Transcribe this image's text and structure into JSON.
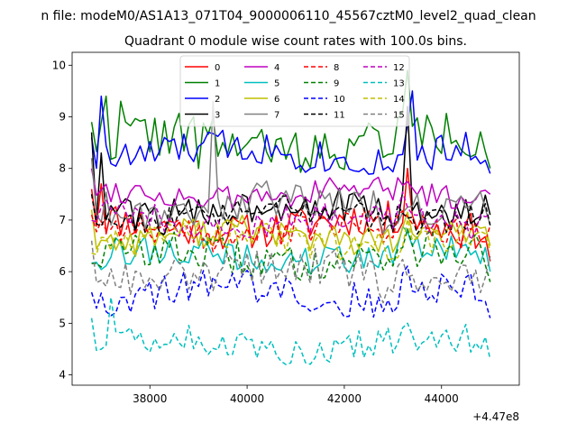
{
  "chart_data": {
    "type": "line",
    "suptitle": "n file: modeM0/AS1A13_071T04_9000006110_45567cztM0_level2_quad_clean",
    "title": "Quadrant 0 module wise count rates with 100.0s bins.",
    "xlabel": "",
    "ylabel": "",
    "x_offset_label": "+4.47e8",
    "xlim": [
      36400,
      45600
    ],
    "ylim": [
      3.8,
      10.25
    ],
    "x_ticks": [
      38000,
      40000,
      42000,
      44000
    ],
    "x_tick_labels": [
      "38000",
      "40000",
      "42000",
      "44000"
    ],
    "y_ticks": [
      4,
      5,
      6,
      7,
      8,
      9,
      10
    ],
    "y_tick_labels": [
      "4",
      "5",
      "6",
      "7",
      "8",
      "9",
      "10"
    ],
    "grid": false,
    "legend_position": "top-center",
    "x_range": [
      36800,
      45000
    ],
    "x_step": 100,
    "series": [
      {
        "name": "0",
        "color": "#ff0000",
        "style": "solid",
        "mean": 6.9,
        "amplitude": 0.35,
        "anchors": [
          [
            36800,
            7.6
          ],
          [
            37000,
            7.7
          ],
          [
            43300,
            8.0
          ],
          [
            45000,
            6.2
          ]
        ],
        "seed": 11
      },
      {
        "name": "1",
        "color": "#008000",
        "style": "solid",
        "mean": 8.5,
        "amplitude": 0.45,
        "anchors": [
          [
            36800,
            8.9
          ],
          [
            37100,
            9.4
          ],
          [
            37400,
            9.3
          ],
          [
            39000,
            8.0
          ],
          [
            41500,
            8.2
          ],
          [
            43300,
            9.9
          ],
          [
            45000,
            8.0
          ]
        ],
        "seed": 22
      },
      {
        "name": "2",
        "color": "#0000ff",
        "style": "solid",
        "mean": 8.3,
        "amplitude": 0.35,
        "anchors": [
          [
            36800,
            8.6
          ],
          [
            37000,
            9.4
          ],
          [
            43400,
            9.5
          ],
          [
            44500,
            8.7
          ],
          [
            45000,
            7.9
          ]
        ],
        "seed": 33
      },
      {
        "name": "3",
        "color": "#000000",
        "style": "solid",
        "mean": 7.2,
        "amplitude": 0.35,
        "anchors": [
          [
            36800,
            8.7
          ],
          [
            37000,
            8.3
          ],
          [
            37400,
            7.3
          ],
          [
            43300,
            9.2
          ],
          [
            45000,
            7.1
          ]
        ],
        "seed": 44
      },
      {
        "name": "4",
        "color": "#bf00bf",
        "style": "solid",
        "mean": 7.5,
        "amplitude": 0.25,
        "anchors": [
          [
            36800,
            8.0
          ],
          [
            45000,
            7.5
          ]
        ],
        "seed": 55
      },
      {
        "name": "5",
        "color": "#00bfbf",
        "style": "solid",
        "mean": 6.3,
        "amplitude": 0.3,
        "anchors": [
          [
            45000,
            6.0
          ]
        ],
        "seed": 66
      },
      {
        "name": "6",
        "color": "#bfbf00",
        "style": "solid",
        "mean": 6.7,
        "amplitude": 0.3,
        "anchors": [
          [
            36800,
            7.2
          ],
          [
            45000,
            6.5
          ]
        ],
        "seed": 77
      },
      {
        "name": "7",
        "color": "#808080",
        "style": "solid",
        "mean": 7.3,
        "amplitude": 0.35,
        "anchors": [
          [
            36800,
            8.2
          ],
          [
            39300,
            9.3
          ],
          [
            45000,
            6.9
          ]
        ],
        "seed": 88
      },
      {
        "name": "8",
        "color": "#ff0000",
        "style": "dashed",
        "mean": 6.8,
        "amplitude": 0.3,
        "anchors": [
          [
            36800,
            7.1
          ],
          [
            45000,
            6.9
          ]
        ],
        "seed": 99
      },
      {
        "name": "9",
        "color": "#008000",
        "style": "dashed",
        "mean": 6.3,
        "amplitude": 0.35,
        "anchors": [
          [
            45000,
            5.8
          ]
        ],
        "seed": 110
      },
      {
        "name": "10",
        "color": "#0000ff",
        "style": "dashed",
        "mean": 5.6,
        "amplitude": 0.35,
        "anchors": [
          [
            36800,
            5.6
          ],
          [
            45000,
            5.1
          ]
        ],
        "seed": 121
      },
      {
        "name": "11",
        "color": "#000000",
        "style": "dashed",
        "mean": 7.1,
        "amplitude": 0.3,
        "anchors": [
          [
            36800,
            7.5
          ],
          [
            45000,
            6.9
          ]
        ],
        "seed": 132
      },
      {
        "name": "12",
        "color": "#bf00bf",
        "style": "dashed",
        "mean": 7.0,
        "amplitude": 0.3,
        "anchors": [
          [
            45000,
            7.1
          ]
        ],
        "seed": 143
      },
      {
        "name": "13",
        "color": "#00bfbf",
        "style": "dashed",
        "mean": 4.6,
        "amplitude": 0.3,
        "anchors": [
          [
            36800,
            5.1
          ],
          [
            37200,
            5.5
          ],
          [
            43300,
            5.0
          ],
          [
            45000,
            4.3
          ]
        ],
        "seed": 154
      },
      {
        "name": "14",
        "color": "#bfbf00",
        "style": "dashed",
        "mean": 6.6,
        "amplitude": 0.3,
        "anchors": [
          [
            45000,
            6.4
          ]
        ],
        "seed": 165
      },
      {
        "name": "15",
        "color": "#808080",
        "style": "dashed",
        "mean": 6.0,
        "amplitude": 0.35,
        "anchors": [
          [
            36800,
            6.6
          ],
          [
            45000,
            6.3
          ]
        ],
        "seed": 176
      }
    ]
  }
}
